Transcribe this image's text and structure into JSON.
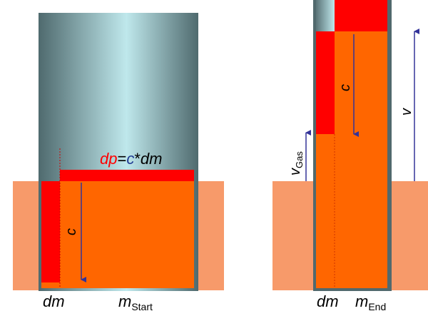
{
  "left_panel": {
    "equation": {
      "dp": "dp",
      "eq": "=",
      "c": "c",
      "star": "*",
      "dm": "dm"
    },
    "speed_label": "c",
    "bottom_dm": "dm",
    "bottom_m": "m",
    "bottom_m_sub": "Start"
  },
  "right_panel": {
    "speed_label": "c",
    "v_label": "v",
    "vgas_label": "v",
    "vgas_sub": "Gas",
    "bottom_dm": "dm",
    "bottom_m": "m",
    "bottom_m_sub": "End"
  },
  "colors": {
    "ground": "#F79A6A",
    "propellant": "#FF6600",
    "red_gas": "#FF0000",
    "arrow": "#333399",
    "tube_dark": "#4F6A6E",
    "tube_light": "#BFE8EC",
    "dp_text": "#FF0000",
    "c_text": "#1F3A93"
  }
}
